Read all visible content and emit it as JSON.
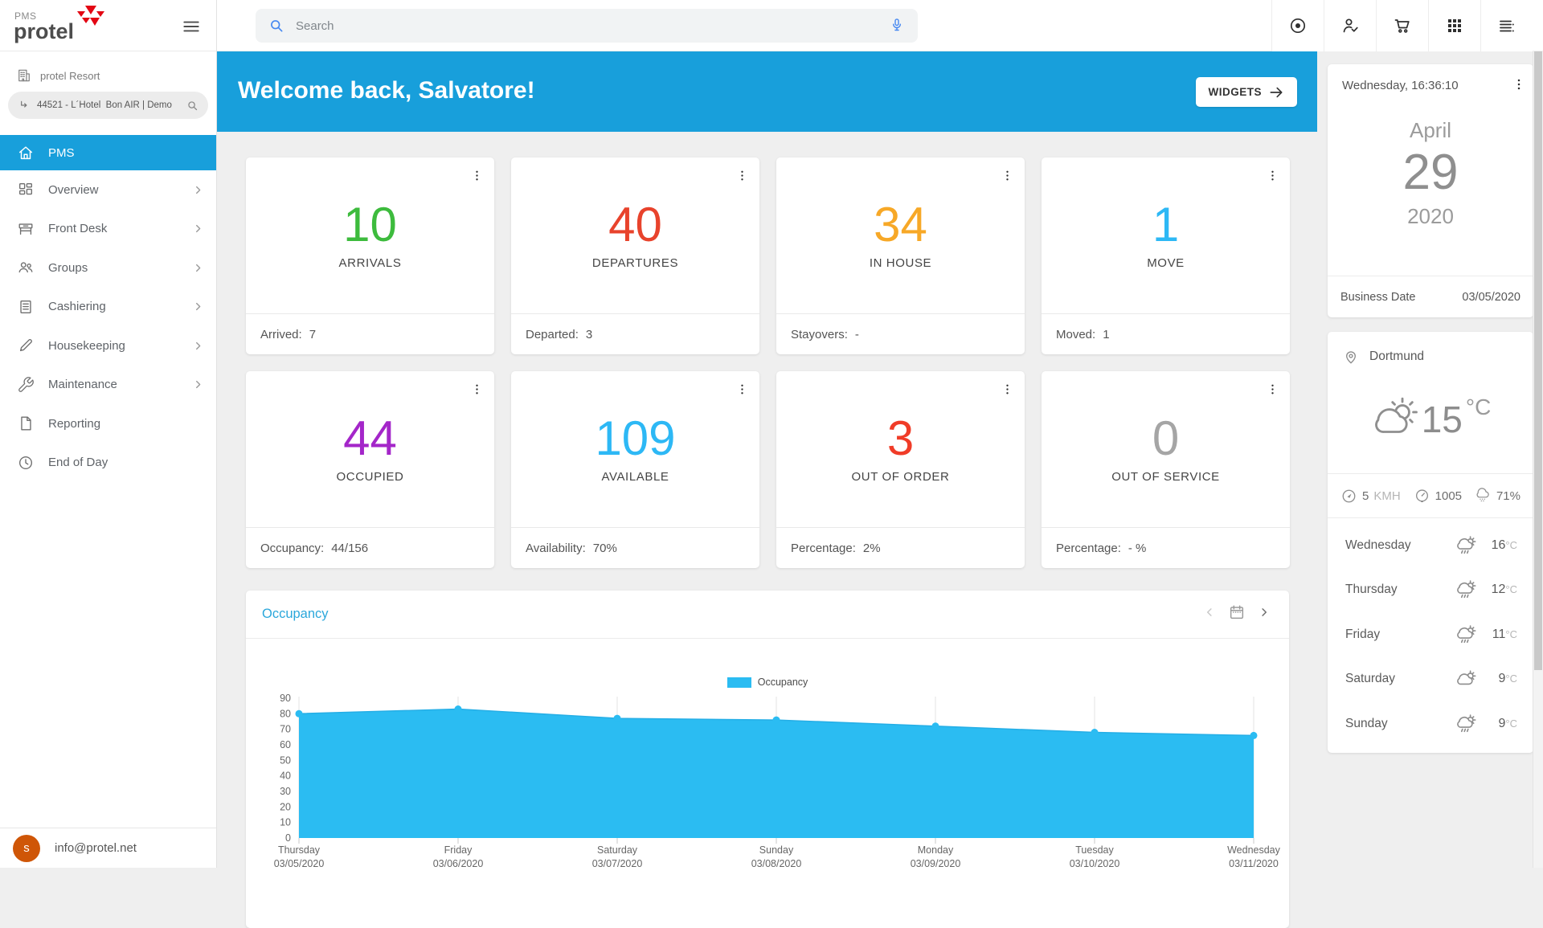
{
  "brand": {
    "pms": "PMS",
    "name": "protel",
    "accent_red": "#e30613",
    "accent_blue": "#189fdb"
  },
  "topbar": {
    "search_placeholder": "Search",
    "action_icons": [
      "record",
      "person-check",
      "cart",
      "apps-grid",
      "list-menu"
    ]
  },
  "sidebar": {
    "resort": "protel Resort",
    "hotel_selector": "44521 - L´Hotel  Bon AIR | Demo",
    "items": [
      {
        "label": "PMS",
        "icon": "home",
        "active": true,
        "chevron": false
      },
      {
        "label": "Overview",
        "icon": "overview",
        "active": false,
        "chevron": true
      },
      {
        "label": "Front Desk",
        "icon": "front-desk",
        "active": false,
        "chevron": true
      },
      {
        "label": "Groups",
        "icon": "groups",
        "active": false,
        "chevron": true
      },
      {
        "label": "Cashiering",
        "icon": "cashiering",
        "active": false,
        "chevron": true
      },
      {
        "label": "Housekeeping",
        "icon": "housekeeping",
        "active": false,
        "chevron": true
      },
      {
        "label": "Maintenance",
        "icon": "maintenance",
        "active": false,
        "chevron": true
      },
      {
        "label": "Reporting",
        "icon": "reporting",
        "active": false,
        "chevron": false
      },
      {
        "label": "End of Day",
        "icon": "end-of-day",
        "active": false,
        "chevron": false
      }
    ],
    "avatar_letter": "s",
    "user_email": "info@protel.net"
  },
  "banner": {
    "welcome": "Welcome back, Salvatore!",
    "widgets_label": "WIDGETS"
  },
  "stat_cards": [
    {
      "value": "10",
      "label": "ARRIVALS",
      "color": "#3dbb3d",
      "footer_label": "Arrived:",
      "footer_value": "7"
    },
    {
      "value": "40",
      "label": "DEPARTURES",
      "color": "#e8432c",
      "footer_label": "Departed:",
      "footer_value": "3"
    },
    {
      "value": "34",
      "label": "IN HOUSE",
      "color": "#f7a827",
      "footer_label": "Stayovers:",
      "footer_value": "-"
    },
    {
      "value": "1",
      "label": "MOVE",
      "color": "#2db8f5",
      "footer_label": "Moved:",
      "footer_value": "1"
    },
    {
      "value": "44",
      "label": "OCCUPIED",
      "color": "#a426c9",
      "footer_label": "Occupancy:",
      "footer_value": "44/156"
    },
    {
      "value": "109",
      "label": "AVAILABLE",
      "color": "#2db8f5",
      "footer_label": "Availability:",
      "footer_value": "70%"
    },
    {
      "value": "3",
      "label": "OUT OF ORDER",
      "color": "#f03c28",
      "footer_label": "Percentage:",
      "footer_value": "2%"
    },
    {
      "value": "0",
      "label": "OUT OF SERVICE",
      "color": "#a5a5a5",
      "footer_label": "Percentage:",
      "footer_value": "- %"
    }
  ],
  "chart_card": {
    "title": "Occupancy"
  },
  "chart_data": {
    "type": "area",
    "title": "Occupancy",
    "legend": [
      "Occupancy"
    ],
    "legend_position": "top-center",
    "series_color": "#2bbcf2",
    "line_color": "#25aee6",
    "categories": [
      {
        "day": "Thursday",
        "date": "03/05/2020"
      },
      {
        "day": "Friday",
        "date": "03/06/2020"
      },
      {
        "day": "Saturday",
        "date": "03/07/2020"
      },
      {
        "day": "Sunday",
        "date": "03/08/2020"
      },
      {
        "day": "Monday",
        "date": "03/09/2020"
      },
      {
        "day": "Tuesday",
        "date": "03/10/2020"
      },
      {
        "day": "Wednesday",
        "date": "03/11/2020"
      }
    ],
    "values": [
      80,
      83,
      77,
      76,
      72,
      68,
      66
    ],
    "ylim": [
      0,
      90
    ],
    "ytick_step": 10,
    "grid": "vertical"
  },
  "right_panel": {
    "date_card": {
      "header": "Wednesday, 16:36:10",
      "month": "April",
      "day": "29",
      "year": "2020",
      "business_date_label": "Business Date",
      "business_date": "03/05/2020"
    },
    "weather_card": {
      "city": "Dortmund",
      "temperature": "15",
      "temperature_unit": "°C",
      "wind_value": "5",
      "wind_unit": "KMH",
      "pressure": "1005",
      "humidity": "71%",
      "forecast": [
        {
          "day": "Wednesday",
          "temp": "16",
          "unit": "°C",
          "icon": "rain-sun"
        },
        {
          "day": "Thursday",
          "temp": "12",
          "unit": "°C",
          "icon": "rain-sun"
        },
        {
          "day": "Friday",
          "temp": "11",
          "unit": "°C",
          "icon": "rain-sun"
        },
        {
          "day": "Saturday",
          "temp": "9",
          "unit": "°C",
          "icon": "cloud-sun"
        },
        {
          "day": "Sunday",
          "temp": "9",
          "unit": "°C",
          "icon": "rain-sun"
        }
      ]
    }
  }
}
